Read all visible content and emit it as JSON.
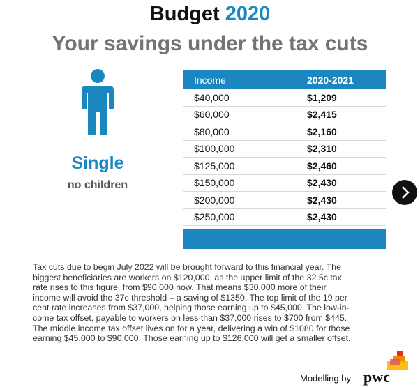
{
  "header": {
    "title_word": "Budget",
    "title_year": "2020",
    "subtitle": "Your savings under the tax cuts"
  },
  "profile": {
    "label": "Single",
    "sublabel": "no children"
  },
  "table": {
    "columns": [
      "Income",
      "2020-2021"
    ],
    "rows": [
      [
        "$40,000",
        "$1,209"
      ],
      [
        "$60,000",
        "$2,415"
      ],
      [
        "$80,000",
        "$2,160"
      ],
      [
        "$100,000",
        "$2,310"
      ],
      [
        "$125,000",
        "$2,460"
      ],
      [
        "$150,000",
        "$2,430"
      ],
      [
        "$200,000",
        "$2,430"
      ],
      [
        "$250,000",
        "$2,430"
      ]
    ]
  },
  "body": {
    "lines": [
      "Tax cuts due to begin July 2022 will be brought forward to this financial year. The",
      "biggest beneficiaries are workers on $120,000, as the upper limit of the 32.5c tax",
      "rate rises to this figure, from $90,000 now. That means $30,000 more of their",
      "income will avoid the 37c threshold – a saving of $1350. The top limit of the 19 per",
      "cent rate increases from $37,000, helping those earning up to $45,000. The low-in-",
      "come tax offset, payable to workers on less than $37,000 rises to $700 from $445.",
      "The middle income tax offset lives on for a year, delivering a win of $1080 for those",
      "earning $45,000 to $90,000. Those earning up to $126,000 will get a smaller offset."
    ]
  },
  "footer": {
    "credit": "Modelling by",
    "logo": "pwc"
  }
}
